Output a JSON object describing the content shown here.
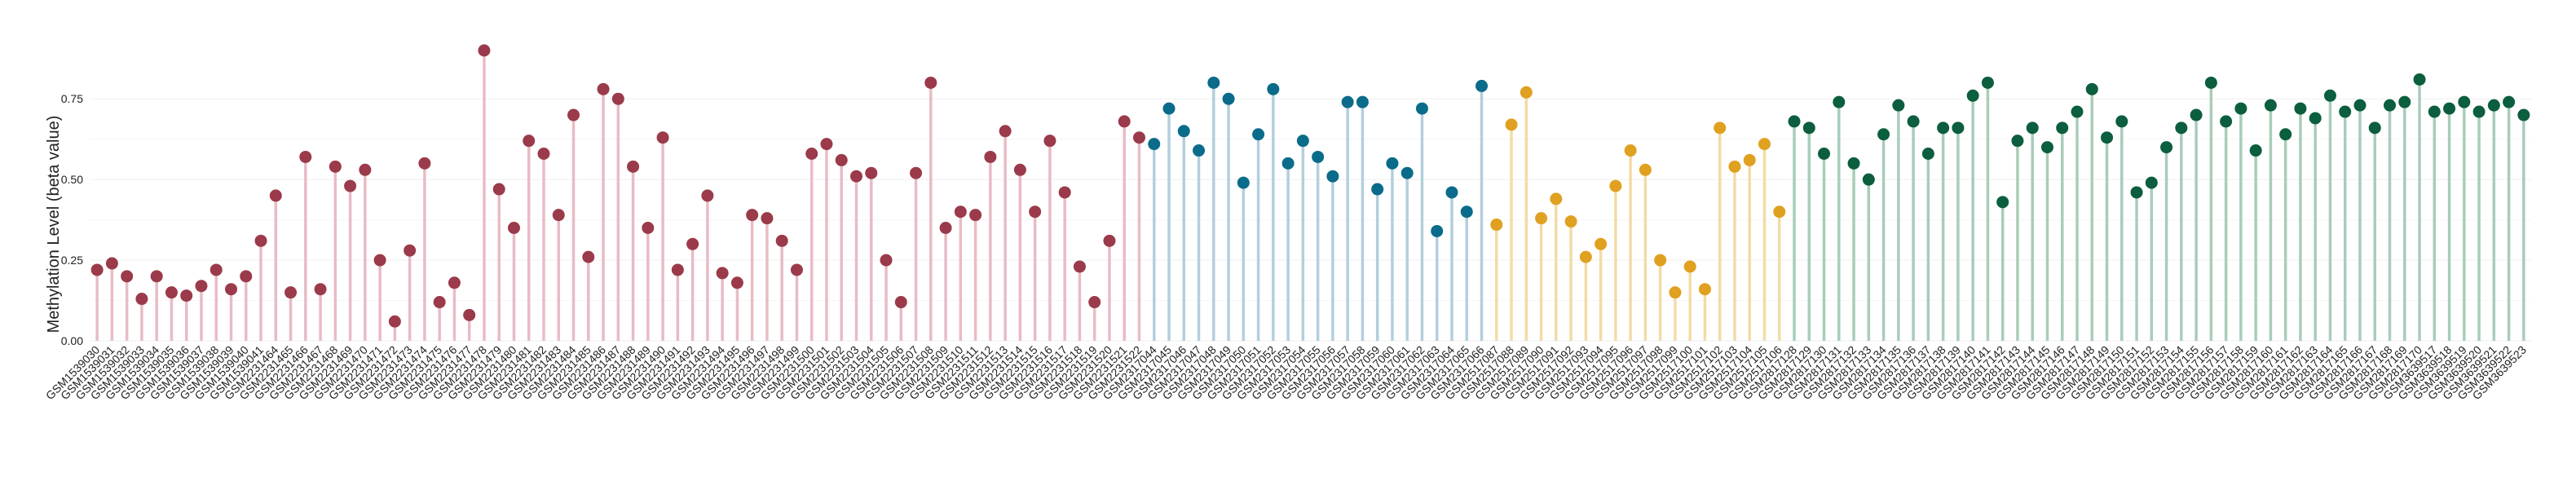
{
  "chart_data": {
    "type": "lollipop",
    "title": "",
    "xlabel": "",
    "ylabel": "Methylation Level (beta value)",
    "ylim": [
      0,
      0.93
    ],
    "yticks": [
      "0.00",
      "0.25",
      "0.50",
      "0.75"
    ],
    "ytick_values": [
      0,
      0.25,
      0.5,
      0.75
    ],
    "grid": "horizontal",
    "legend": "none",
    "series": [
      {
        "color": "#9b3a4a",
        "stem_color": "#e8bcc5",
        "categories": [
          "GSM1539030",
          "GSM1539031",
          "GSM1539032",
          "GSM1539033",
          "GSM1539034",
          "GSM1539035",
          "GSM1539036",
          "GSM1539037",
          "GSM1539038",
          "GSM1539039",
          "GSM1539040",
          "GSM1539041",
          "GSM2231464",
          "GSM2231465",
          "GSM2231466",
          "GSM2231467",
          "GSM2231468",
          "GSM2231469",
          "GSM2231470",
          "GSM2231471",
          "GSM2231472",
          "GSM2231473",
          "GSM2231474",
          "GSM2231475",
          "GSM2231476",
          "GSM2231477",
          "GSM2231478",
          "GSM2231479",
          "GSM2231480",
          "GSM2231481",
          "GSM2231482",
          "GSM2231483",
          "GSM2231484",
          "GSM2231485",
          "GSM2231486",
          "GSM2231487",
          "GSM2231488",
          "GSM2231489",
          "GSM2231490",
          "GSM2231491",
          "GSM2231492",
          "GSM2231493",
          "GSM2231494",
          "GSM2231495",
          "GSM2231496",
          "GSM2231497",
          "GSM2231498",
          "GSM2231499",
          "GSM2231500",
          "GSM2231501",
          "GSM2231502",
          "GSM2231503",
          "GSM2231504",
          "GSM2231505",
          "GSM2231506",
          "GSM2231507",
          "GSM2231508",
          "GSM2231509",
          "GSM2231510",
          "GSM2231511",
          "GSM2231512",
          "GSM2231513",
          "GSM2231514",
          "GSM2231515",
          "GSM2231516",
          "GSM2231517",
          "GSM2231518",
          "GSM2231519",
          "GSM2231520",
          "GSM2231521",
          "GSM2231522"
        ],
        "values": [
          0.22,
          0.24,
          0.2,
          0.13,
          0.2,
          0.15,
          0.14,
          0.17,
          0.22,
          0.16,
          0.2,
          0.31,
          0.45,
          0.15,
          0.57,
          0.16,
          0.54,
          0.48,
          0.53,
          0.25,
          0.06,
          0.28,
          0.55,
          0.12,
          0.18,
          0.08,
          0.9,
          0.47,
          0.35,
          0.62,
          0.58,
          0.39,
          0.7,
          0.26,
          0.78,
          0.75,
          0.54,
          0.35,
          0.63,
          0.22,
          0.3,
          0.45,
          0.21,
          0.18,
          0.39,
          0.38,
          0.31,
          0.22,
          0.58,
          0.61,
          0.56,
          0.51,
          0.52,
          0.25,
          0.12,
          0.52,
          0.8,
          0.35,
          0.4,
          0.39,
          0.57,
          0.65,
          0.53,
          0.4,
          0.62,
          0.46,
          0.23,
          0.12,
          0.31,
          0.68,
          0.63
        ]
      },
      {
        "color": "#0b6b8a",
        "stem_color": "#b3cfdd",
        "categories": [
          "GSM2317044",
          "GSM2317045",
          "GSM2317046",
          "GSM2317047",
          "GSM2317048",
          "GSM2317049",
          "GSM2317050",
          "GSM2317051",
          "GSM2317052",
          "GSM2317053",
          "GSM2317054",
          "GSM2317055",
          "GSM2317056",
          "GSM2317057",
          "GSM2317058",
          "GSM2317059",
          "GSM2317060",
          "GSM2317061",
          "GSM2317062",
          "GSM2317063",
          "GSM2317064",
          "GSM2317065",
          "GSM2317066"
        ],
        "values": [
          0.61,
          0.72,
          0.65,
          0.59,
          0.8,
          0.75,
          0.49,
          0.64,
          0.78,
          0.55,
          0.62,
          0.57,
          0.51,
          0.74,
          0.74,
          0.47,
          0.55,
          0.52,
          0.72,
          0.34,
          0.46,
          0.4,
          0.79
        ]
      },
      {
        "color": "#e0a020",
        "stem_color": "#f2dca6",
        "categories": [
          "GSM2517087",
          "GSM2517088",
          "GSM2517089",
          "GSM2517090",
          "GSM2517091",
          "GSM2517092",
          "GSM2517093",
          "GSM2517094",
          "GSM2517095",
          "GSM2517096",
          "GSM2517097",
          "GSM2517098",
          "GSM2517099",
          "GSM2517100",
          "GSM2517101",
          "GSM2517102",
          "GSM2517103",
          "GSM2517104",
          "GSM2517105",
          "GSM2517106"
        ],
        "values": [
          0.36,
          0.67,
          0.77,
          0.38,
          0.44,
          0.37,
          0.26,
          0.3,
          0.48,
          0.59,
          0.53,
          0.25,
          0.15,
          0.23,
          0.16,
          0.66,
          0.54,
          0.56,
          0.61,
          0.4
        ]
      },
      {
        "color": "#0b5e3e",
        "stem_color": "#a8cdb9",
        "categories": [
          "GSM2817128",
          "GSM2817129",
          "GSM2817130",
          "GSM2817131",
          "GSM2817132",
          "GSM2817133",
          "GSM2817134",
          "GSM2817135",
          "GSM2817136",
          "GSM2817137",
          "GSM2817138",
          "GSM2817139",
          "GSM2817140",
          "GSM2817141",
          "GSM2817142",
          "GSM2817143",
          "GSM2817144",
          "GSM2817145",
          "GSM2817146",
          "GSM2817147",
          "GSM2817148",
          "GSM2817149",
          "GSM2817150",
          "GSM2817151",
          "GSM2817152",
          "GSM2817153",
          "GSM2817154",
          "GSM2817155",
          "GSM2817156",
          "GSM2817157",
          "GSM2817158",
          "GSM2817159",
          "GSM2817160",
          "GSM2817161",
          "GSM2817162",
          "GSM2817163",
          "GSM2817164",
          "GSM2817165",
          "GSM2817166",
          "GSM2817167",
          "GSM2817168",
          "GSM2817169",
          "GSM2817170",
          "GSM3639517",
          "GSM3639518",
          "GSM3639519",
          "GSM3639520",
          "GSM3639521",
          "GSM3639522",
          "GSM3639523"
        ],
        "values": [
          0.68,
          0.66,
          0.58,
          0.74,
          0.55,
          0.5,
          0.64,
          0.73,
          0.68,
          0.58,
          0.66,
          0.66,
          0.76,
          0.8,
          0.43,
          0.62,
          0.66,
          0.6,
          0.66,
          0.71,
          0.78,
          0.63,
          0.68,
          0.46,
          0.49,
          0.6,
          0.66,
          0.7,
          0.8,
          0.68,
          0.72,
          0.59,
          0.73,
          0.64,
          0.72,
          0.69,
          0.76,
          0.71,
          0.73,
          0.66,
          0.73,
          0.74,
          0.81,
          0.71,
          0.72,
          0.74,
          0.71,
          0.73,
          0.74,
          0.7
        ]
      }
    ]
  }
}
